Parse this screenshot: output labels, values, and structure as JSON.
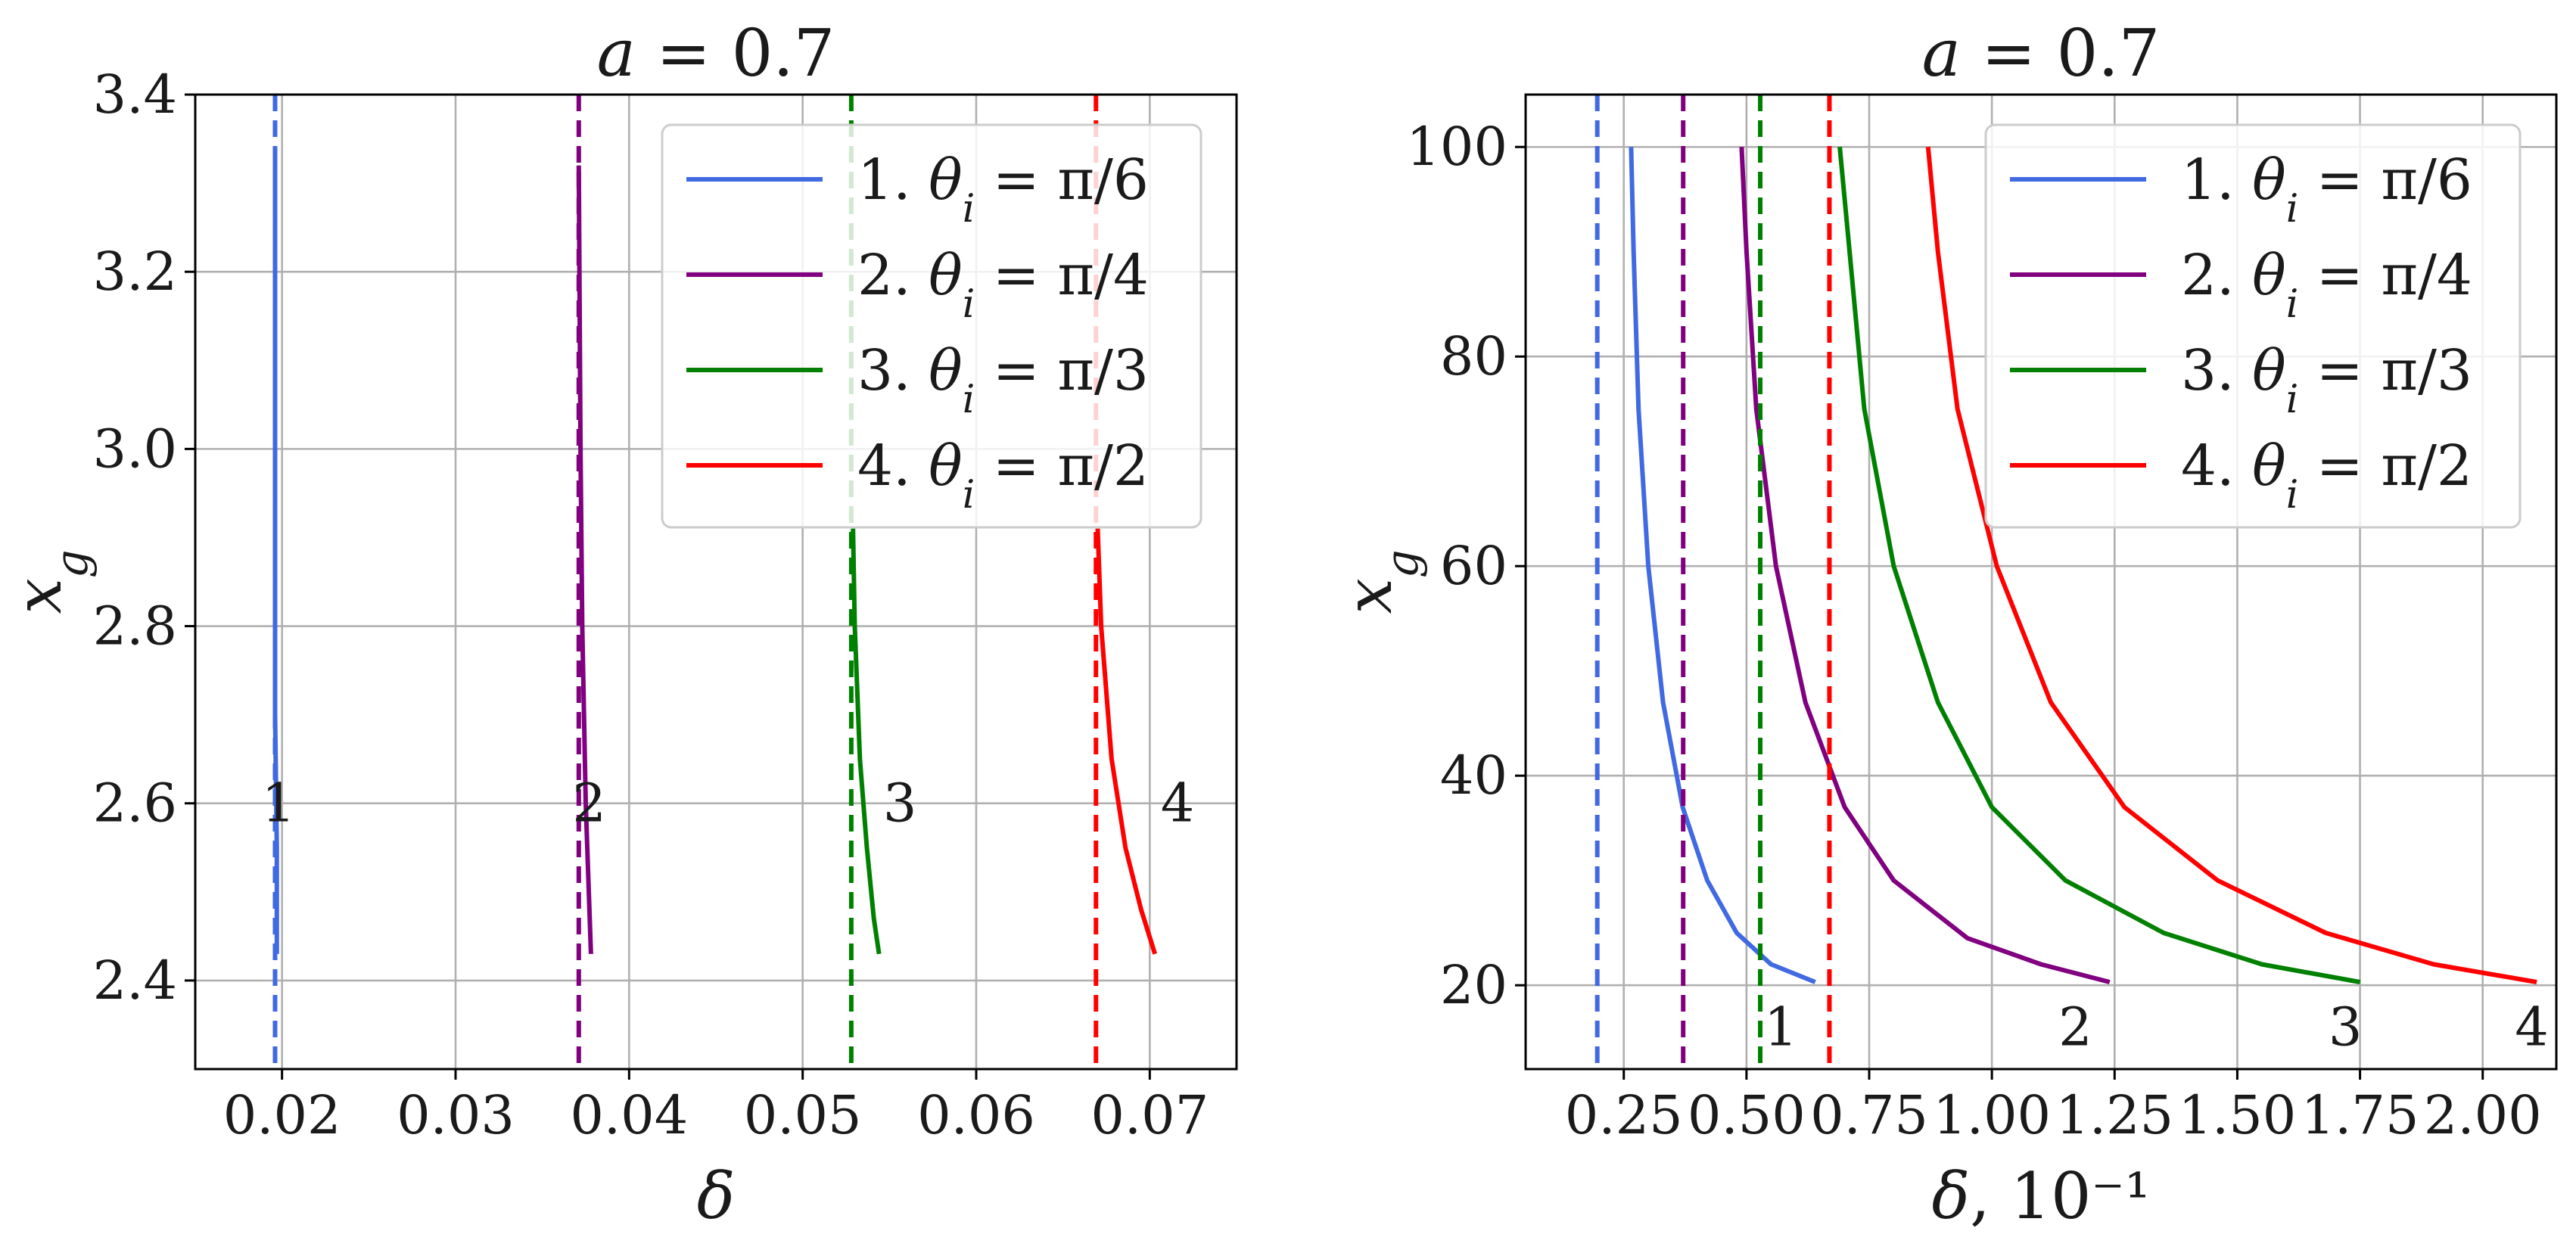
{
  "chart_data": [
    {
      "type": "line",
      "title": "a = 0.7",
      "xlabel": "δ",
      "ylabel": "x_g",
      "xlim": [
        0.015,
        0.075
      ],
      "ylim": [
        2.3,
        3.4
      ],
      "xticks": [
        "0.02",
        "0.03",
        "0.04",
        "0.05",
        "0.06",
        "0.07"
      ],
      "yticks": [
        "2.4",
        "2.6",
        "2.8",
        "3.0",
        "3.2",
        "3.4"
      ],
      "grid": true,
      "legend_position": "top-right",
      "series": [
        {
          "name": "1. θ_i = π/6",
          "color": "#4169e1",
          "asymptote": 0.0196,
          "x": [
            0.0196,
            0.0196,
            0.0196,
            0.0197,
            0.0197
          ],
          "y": [
            3.34,
            3.0,
            2.7,
            2.55,
            2.43
          ],
          "label": "1"
        },
        {
          "name": "2. θ_i = π/4",
          "color": "#800080",
          "asymptote": 0.0371,
          "x": [
            0.0371,
            0.0372,
            0.0373,
            0.0375,
            0.0378
          ],
          "y": [
            3.32,
            3.0,
            2.8,
            2.6,
            2.43
          ],
          "label": "2"
        },
        {
          "name": "3. θ_i = π/3",
          "color": "#008000",
          "asymptote": 0.0528,
          "x": [
            0.0529,
            0.053,
            0.0533,
            0.0537,
            0.0541,
            0.0544
          ],
          "y": [
            2.91,
            2.8,
            2.65,
            2.55,
            2.47,
            2.43
          ],
          "label": "3"
        },
        {
          "name": "4. θ_i = π/2",
          "color": "#ff0000",
          "asymptote": 0.0669,
          "x": [
            0.067,
            0.0672,
            0.0678,
            0.0686,
            0.0695,
            0.0703
          ],
          "y": [
            2.91,
            2.8,
            2.65,
            2.55,
            2.48,
            2.43
          ],
          "label": "4"
        }
      ]
    },
    {
      "type": "line",
      "title": "a = 0.7",
      "xlabel": "δ, 10⁻¹",
      "ylabel": "x_g",
      "xlim": [
        0.05,
        2.15
      ],
      "ylim": [
        12,
        105
      ],
      "xticks": [
        "0.25",
        "0.50",
        "0.75",
        "1.00",
        "1.25",
        "1.50",
        "1.75",
        "2.00"
      ],
      "yticks": [
        "20",
        "40",
        "60",
        "80",
        "100"
      ],
      "grid": true,
      "legend_position": "top-right",
      "series": [
        {
          "name": "1. θ_i = π/6",
          "color": "#4169e1",
          "asymptote": 0.196,
          "x": [
            0.265,
            0.27,
            0.28,
            0.3,
            0.33,
            0.37,
            0.42,
            0.48,
            0.55,
            0.64
          ],
          "y": [
            100,
            90,
            75,
            60,
            47,
            37,
            30,
            25,
            22,
            20.3
          ],
          "label": "1"
        },
        {
          "name": "2. θ_i = π/4",
          "color": "#800080",
          "asymptote": 0.371,
          "x": [
            0.49,
            0.5,
            0.52,
            0.56,
            0.62,
            0.7,
            0.8,
            0.95,
            1.1,
            1.24
          ],
          "y": [
            100,
            90,
            75,
            60,
            47,
            37,
            30,
            24.5,
            22,
            20.3
          ],
          "label": "2"
        },
        {
          "name": "3. θ_i = π/3",
          "color": "#008000",
          "asymptote": 0.528,
          "x": [
            0.69,
            0.71,
            0.74,
            0.8,
            0.89,
            1.0,
            1.15,
            1.35,
            1.55,
            1.75
          ],
          "y": [
            100,
            90,
            75,
            60,
            47,
            37,
            30,
            25,
            22,
            20.3
          ],
          "label": "3"
        },
        {
          "name": "4. θ_i = π/2",
          "color": "#ff0000",
          "asymptote": 0.669,
          "x": [
            0.87,
            0.89,
            0.93,
            1.01,
            1.12,
            1.27,
            1.46,
            1.68,
            1.9,
            2.11
          ],
          "y": [
            100,
            90,
            75,
            60,
            47,
            37,
            30,
            25,
            22,
            20.3
          ],
          "label": "4"
        }
      ]
    }
  ]
}
